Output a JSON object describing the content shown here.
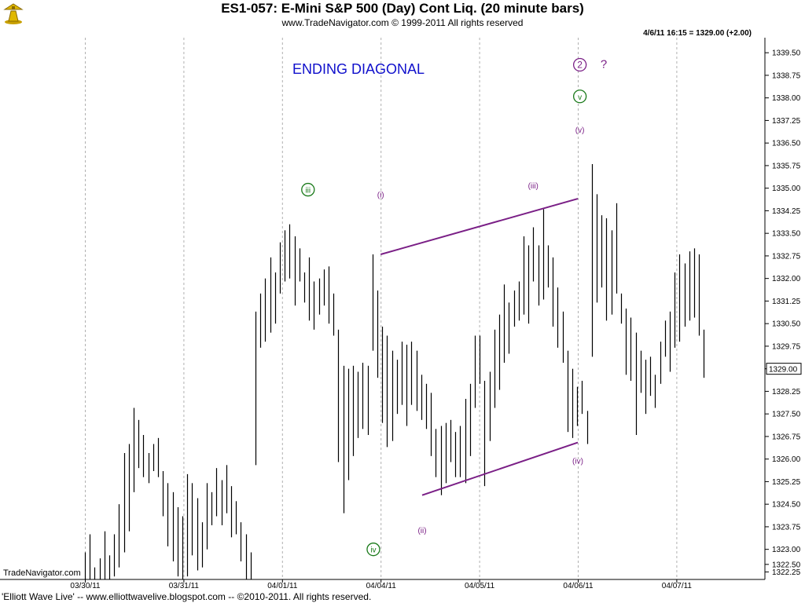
{
  "header": {
    "title": "ES1-057:  E-Mini S&P 500 (Day) Cont Liq.  (20 minute bars)",
    "subtitle": "www.TradeNavigator.com © 1999-2011 All rights reserved",
    "readout": "4/6/11 16:15 = 1329.00 (+2.00)"
  },
  "brand": "TradeNavigator.com",
  "footer": "'Elliott Wave Live' -- www.elliottwavelive.blogspot.com -- ©2010-2011. All rights reserved.",
  "colors": {
    "bars": "#000000",
    "trendlines": "#7a1f86",
    "wave_label": "#7a1f86",
    "circle_label": "#1a7a1a",
    "title_annotation": "#1010cc"
  },
  "chart_data": {
    "type": "ohlc",
    "ylim": [
      1322.0,
      1340.0
    ],
    "yticks": [
      "1322.25",
      "1322.50",
      "1323.00",
      "1323.75",
      "1324.50",
      "1325.25",
      "1326.00",
      "1326.75",
      "1327.50",
      "1328.25",
      "1329.00",
      "1329.75",
      "1330.50",
      "1331.25",
      "1332.00",
      "1332.75",
      "1333.50",
      "1334.25",
      "1335.00",
      "1335.75",
      "1336.50",
      "1337.25",
      "1338.00",
      "1338.75",
      "1339.50"
    ],
    "xticks": [
      "03/30/11",
      "03/31/11",
      "04/01/11",
      "04/04/11",
      "04/05/11",
      "04/06/11",
      "04/07/11"
    ],
    "last_price": "1329.00",
    "annotation": "ENDING DIAGONAL",
    "bars": [
      [
        1320.9,
        1322.9
      ],
      [
        1321.2,
        1323.5
      ],
      [
        1321.5,
        1322.4
      ],
      [
        1321.0,
        1322.7
      ],
      [
        1321.6,
        1323.6
      ],
      [
        1321.9,
        1322.8
      ],
      [
        1322.1,
        1323.5
      ],
      [
        1322.4,
        1324.5
      ],
      [
        1322.9,
        1326.2
      ],
      [
        1323.6,
        1326.5
      ],
      [
        1324.9,
        1327.7
      ],
      [
        1325.7,
        1327.3
      ],
      [
        1325.4,
        1326.8
      ],
      [
        1325.2,
        1326.2
      ],
      [
        1325.6,
        1326.5
      ],
      [
        1325.4,
        1326.7
      ],
      [
        1324.1,
        1325.6
      ],
      [
        1323.1,
        1325.2
      ],
      [
        1322.6,
        1324.9
      ],
      [
        1322.1,
        1324.4
      ],
      [
        1321.8,
        1324.1
      ],
      [
        1322.1,
        1325.5
      ],
      [
        1322.8,
        1325.2
      ],
      [
        1322.3,
        1324.7
      ],
      [
        1322.4,
        1323.9
      ],
      [
        1323.0,
        1325.2
      ],
      [
        1323.8,
        1324.9
      ],
      [
        1324.1,
        1325.7
      ],
      [
        1323.8,
        1325.3
      ],
      [
        1324.2,
        1325.8
      ],
      [
        1323.4,
        1325.1
      ],
      [
        1323.5,
        1324.6
      ],
      [
        1322.6,
        1323.9
      ],
      [
        1321.5,
        1323.5
      ],
      [
        1321.8,
        1322.9
      ],
      [
        1325.8,
        1330.9
      ],
      [
        1329.7,
        1331.5
      ],
      [
        1329.9,
        1332.0
      ],
      [
        1330.2,
        1332.7
      ],
      [
        1330.5,
        1332.2
      ],
      [
        1331.5,
        1333.2
      ],
      [
        1331.9,
        1333.6
      ],
      [
        1332.0,
        1333.8
      ],
      [
        1331.1,
        1333.4
      ],
      [
        1331.9,
        1333.0
      ],
      [
        1331.2,
        1332.2
      ],
      [
        1330.6,
        1332.7
      ],
      [
        1330.3,
        1331.9
      ],
      [
        1330.8,
        1332.0
      ],
      [
        1331.1,
        1332.3
      ],
      [
        1330.5,
        1332.4
      ],
      [
        1330.1,
        1331.5
      ],
      [
        1325.9,
        1330.3
      ],
      [
        1324.2,
        1329.1
      ],
      [
        1325.3,
        1329.0
      ],
      [
        1326.1,
        1329.1
      ],
      [
        1326.7,
        1328.9
      ],
      [
        1327.0,
        1329.2
      ],
      [
        1326.8,
        1329.1
      ],
      [
        1329.6,
        1332.8
      ],
      [
        1328.7,
        1331.6
      ],
      [
        1327.2,
        1330.4
      ],
      [
        1326.4,
        1330.1
      ],
      [
        1326.6,
        1329.6
      ],
      [
        1327.5,
        1329.3
      ],
      [
        1327.8,
        1329.9
      ],
      [
        1327.1,
        1329.8
      ],
      [
        1327.8,
        1329.9
      ],
      [
        1327.6,
        1329.6
      ],
      [
        1327.3,
        1328.8
      ],
      [
        1327.0,
        1328.5
      ],
      [
        1326.1,
        1328.2
      ],
      [
        1325.4,
        1327.0
      ],
      [
        1324.8,
        1327.1
      ],
      [
        1325.2,
        1327.2
      ],
      [
        1325.9,
        1327.3
      ],
      [
        1325.4,
        1326.9
      ],
      [
        1325.4,
        1327.1
      ],
      [
        1325.2,
        1328.0
      ],
      [
        1326.1,
        1328.5
      ],
      [
        1327.7,
        1330.1
      ],
      [
        1328.5,
        1330.1
      ],
      [
        1325.1,
        1328.6
      ],
      [
        1326.6,
        1328.9
      ],
      [
        1327.7,
        1330.3
      ],
      [
        1328.3,
        1330.8
      ],
      [
        1329.2,
        1331.8
      ],
      [
        1329.5,
        1331.2
      ],
      [
        1330.4,
        1331.6
      ],
      [
        1330.6,
        1331.9
      ],
      [
        1330.8,
        1333.4
      ],
      [
        1330.5,
        1333.1
      ],
      [
        1331.9,
        1333.7
      ],
      [
        1331.1,
        1333.1
      ],
      [
        1331.3,
        1334.3
      ],
      [
        1331.7,
        1333.1
      ],
      [
        1330.4,
        1332.7
      ],
      [
        1329.7,
        1331.7
      ],
      [
        1329.2,
        1330.9
      ],
      [
        1326.9,
        1329.6
      ],
      [
        1326.7,
        1329.0
      ],
      [
        1327.1,
        1328.4
      ],
      [
        1327.5,
        1328.6
      ],
      [
        1326.5,
        1327.6
      ],
      [
        1329.4,
        1335.8
      ],
      [
        1331.2,
        1334.8
      ],
      [
        1331.7,
        1334.1
      ],
      [
        1330.6,
        1334.0
      ],
      [
        1330.8,
        1333.6
      ],
      [
        1331.5,
        1334.5
      ],
      [
        1330.5,
        1331.5
      ],
      [
        1328.8,
        1331.0
      ],
      [
        1328.6,
        1330.7
      ],
      [
        1326.8,
        1330.2
      ],
      [
        1328.2,
        1329.6
      ],
      [
        1327.5,
        1329.3
      ],
      [
        1328.1,
        1329.4
      ],
      [
        1327.7,
        1328.8
      ],
      [
        1328.5,
        1329.9
      ],
      [
        1329.4,
        1330.6
      ],
      [
        1328.9,
        1330.9
      ],
      [
        1329.7,
        1332.2
      ],
      [
        1329.9,
        1332.8
      ],
      [
        1330.4,
        1332.5
      ],
      [
        1330.6,
        1332.9
      ],
      [
        1330.7,
        1333.0
      ],
      [
        1330.1,
        1332.8
      ],
      [
        1328.7,
        1330.3
      ]
    ],
    "trendlines": [
      {
        "from": [
          6,
          1332.8
        ],
        "to": [
          25,
          1334.65
        ]
      },
      {
        "from": [
          10,
          1324.8
        ],
        "to": [
          25,
          1326.55
        ]
      }
    ],
    "wave_labels": [
      {
        "text": "(i)",
        "x": 6,
        "y": 1334.8,
        "style": "plain"
      },
      {
        "text": "(ii)",
        "x": 10,
        "y": 1323.65,
        "style": "plain"
      },
      {
        "text": "(iii)",
        "x": 20.7,
        "y": 1335.1,
        "style": "plain"
      },
      {
        "text": "(iv)",
        "x": 25.0,
        "y": 1325.95,
        "style": "plain"
      },
      {
        "text": "(v)",
        "x": 25.2,
        "y": 1336.95,
        "style": "plain"
      },
      {
        "text": "iii",
        "x": -1.0,
        "y": 1334.95,
        "style": "circle-green"
      },
      {
        "text": "iv",
        "x": 5.3,
        "y": 1323.0,
        "style": "circle-green"
      },
      {
        "text": "v",
        "x": 25.2,
        "y": 1338.05,
        "style": "circle-green"
      },
      {
        "text": "2",
        "x": 25.2,
        "y": 1339.1,
        "style": "circle-purple"
      },
      {
        "text": "?",
        "x": 27.5,
        "y": 1339.1,
        "style": "plain"
      }
    ]
  }
}
